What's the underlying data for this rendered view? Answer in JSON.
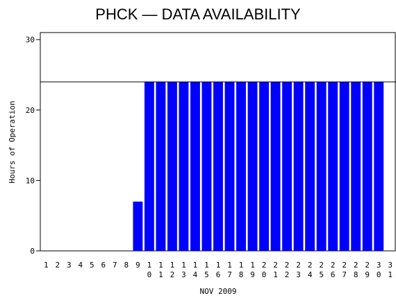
{
  "chart_data": {
    "type": "bar",
    "title": "PHCK — DATA AVAILABILITY",
    "x_label": "NOV 2009",
    "y_label": "Hours of Operation",
    "categories": [
      "1",
      "2",
      "3",
      "4",
      "5",
      "6",
      "7",
      "8",
      "9",
      "10",
      "11",
      "12",
      "13",
      "14",
      "15",
      "16",
      "17",
      "18",
      "19",
      "20",
      "21",
      "22",
      "23",
      "24",
      "25",
      "26",
      "27",
      "28",
      "29",
      "30",
      "31"
    ],
    "values": [
      0,
      0,
      0,
      0,
      0,
      0,
      0,
      0,
      7,
      24,
      24,
      24,
      24,
      24,
      24,
      24,
      24,
      24,
      24,
      24,
      24,
      24,
      24,
      24,
      24,
      24,
      24,
      24,
      24,
      24,
      0
    ],
    "color": "#0000ff",
    "ylim": [
      0,
      31
    ],
    "yticks": [
      0,
      10,
      20,
      30
    ],
    "reference_line": 24
  }
}
